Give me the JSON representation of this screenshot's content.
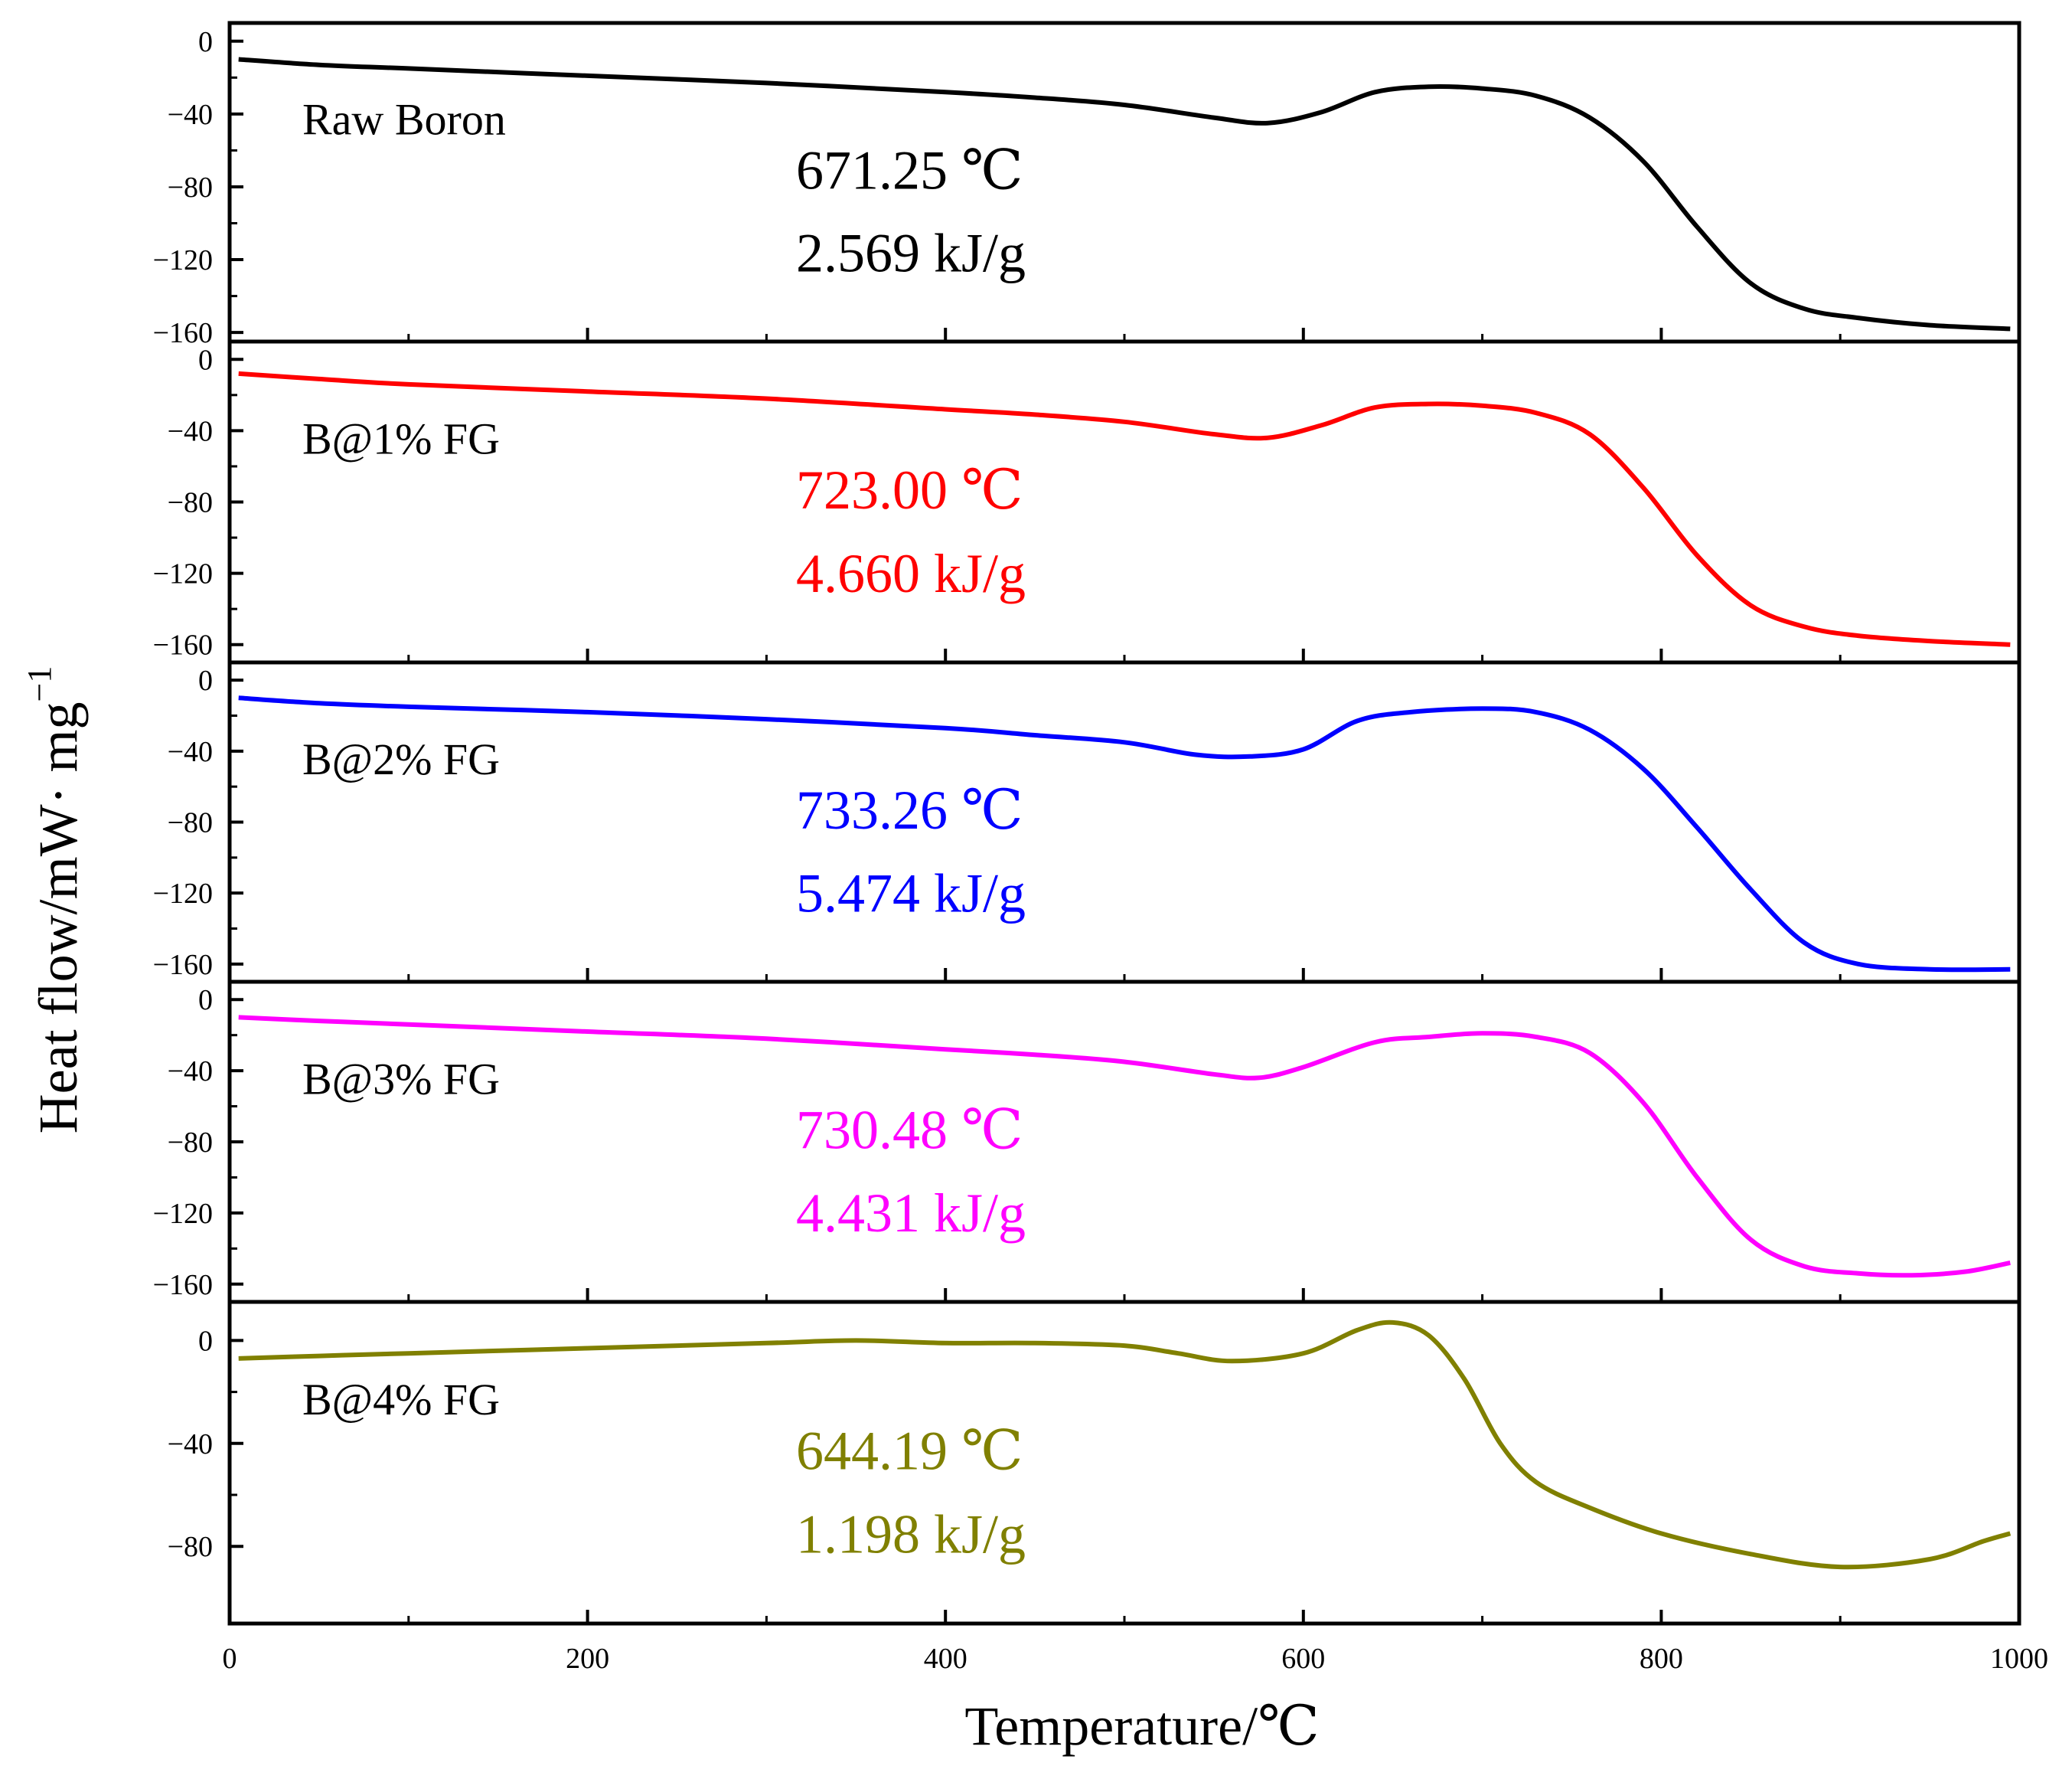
{
  "chart_data": {
    "type": "line",
    "layout": "stacked-panels",
    "xlabel": "Temperature/℃",
    "ylabel": "Heat flow/mW· mg",
    "ylabel_superscript": "−1",
    "xlim": [
      0,
      1000
    ],
    "xticks": [
      0,
      200,
      400,
      600,
      800,
      1000
    ],
    "panels": [
      {
        "name": "Raw Boron",
        "color": "#000000",
        "ylim": [
          -165,
          10
        ],
        "yticks": [
          0,
          -40,
          -80,
          -120,
          -160
        ],
        "ytick_labels": [
          "0",
          "−40",
          "−80",
          "−120",
          "−160"
        ],
        "annotations": [
          "671.25 ℃",
          "2.569 kJ/g"
        ],
        "x": [
          5,
          50,
          100,
          200,
          300,
          400,
          450,
          500,
          550,
          580,
          610,
          640,
          670,
          700,
          730,
          760,
          790,
          820,
          850,
          880,
          910,
          950,
          995
        ],
        "y": [
          -10,
          -13,
          -15,
          -19,
          -23,
          -28,
          -31,
          -35,
          -42,
          -45,
          -39,
          -28,
          -25,
          -26,
          -30,
          -42,
          -66,
          -102,
          -133,
          -147,
          -152,
          -156,
          -158
        ]
      },
      {
        "name": "B@1% FG",
        "color": "#ff0000",
        "ylim": [
          -170,
          10
        ],
        "yticks": [
          0,
          -40,
          -80,
          -120,
          -160
        ],
        "ytick_labels": [
          "0",
          "−40",
          "−80",
          "−120",
          "−160"
        ],
        "annotations": [
          "723.00 ℃",
          "4.660 kJ/g"
        ],
        "x": [
          5,
          50,
          100,
          200,
          300,
          400,
          450,
          500,
          550,
          580,
          610,
          640,
          670,
          700,
          730,
          760,
          790,
          820,
          850,
          880,
          910,
          950,
          995
        ],
        "y": [
          -8,
          -11,
          -14,
          -18,
          -22,
          -28,
          -31,
          -35,
          -42,
          -44,
          -37,
          -27,
          -25,
          -26,
          -30,
          -42,
          -72,
          -110,
          -138,
          -150,
          -155,
          -158,
          -160
        ]
      },
      {
        "name": "B@2% FG",
        "color": "#0000ff",
        "ylim": [
          -170,
          10
        ],
        "yticks": [
          0,
          -40,
          -80,
          -120,
          -160
        ],
        "ytick_labels": [
          "0",
          "−40",
          "−80",
          "−120",
          "−160"
        ],
        "annotations": [
          "733.26 ℃",
          "5.474 kJ/g"
        ],
        "x": [
          5,
          50,
          100,
          200,
          300,
          400,
          450,
          500,
          540,
          570,
          600,
          630,
          660,
          700,
          730,
          760,
          790,
          820,
          850,
          880,
          910,
          950,
          995
        ],
        "y": [
          -10,
          -13,
          -15,
          -18,
          -22,
          -27,
          -31,
          -35,
          -42,
          -43,
          -39,
          -23,
          -18,
          -16,
          -18,
          -28,
          -50,
          -83,
          -118,
          -148,
          -160,
          -163,
          -163
        ]
      },
      {
        "name": "B@3% FG",
        "color": "#ff00ff",
        "ylim": [
          -170,
          10
        ],
        "yticks": [
          0,
          -40,
          -80,
          -120,
          -160
        ],
        "ytick_labels": [
          "0",
          "−40",
          "−80",
          "−120",
          "−160"
        ],
        "annotations": [
          "730.48 ℃",
          "4.431 kJ/g"
        ],
        "x": [
          5,
          50,
          100,
          200,
          300,
          400,
          450,
          500,
          550,
          575,
          600,
          640,
          670,
          700,
          730,
          760,
          790,
          820,
          850,
          880,
          910,
          940,
          970,
          995
        ],
        "y": [
          -10,
          -12,
          -14,
          -18,
          -22,
          -28,
          -31,
          -35,
          -42,
          -44,
          -38,
          -24,
          -21,
          -19,
          -21,
          -30,
          -58,
          -100,
          -135,
          -150,
          -154,
          -155,
          -153,
          -148
        ]
      },
      {
        "name": "B@4% FG",
        "color": "#808000",
        "ylim": [
          -110,
          15
        ],
        "yticks": [
          0,
          -40,
          -80
        ],
        "ytick_labels": [
          "0",
          "−40",
          "−80"
        ],
        "annotations": [
          "644.19 ℃",
          "1.198 kJ/g"
        ],
        "x": [
          5,
          50,
          100,
          200,
          300,
          350,
          400,
          450,
          500,
          530,
          560,
          600,
          630,
          650,
          670,
          690,
          710,
          730,
          760,
          800,
          850,
          900,
          950,
          980,
          995
        ],
        "y": [
          -7,
          -6,
          -5,
          -3,
          -1,
          0,
          -1,
          -1,
          -2,
          -5,
          -8,
          -5,
          4,
          7,
          2,
          -15,
          -40,
          -55,
          -65,
          -75,
          -83,
          -88,
          -85,
          -78,
          -75
        ]
      }
    ]
  }
}
